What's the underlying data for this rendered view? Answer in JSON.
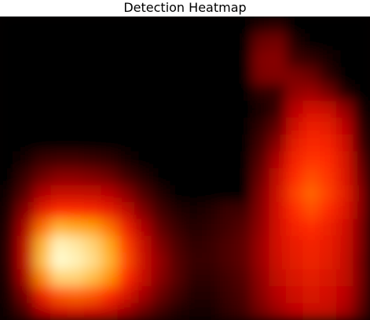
{
  "chart_data": {
    "type": "heatmap",
    "title": "Detection Heatmap",
    "xlabel": "",
    "ylabel": "",
    "colormap": "hot",
    "colormap_stops": [
      {
        "t": 0.0,
        "color": "#050000"
      },
      {
        "t": 0.35,
        "color": "#b40000"
      },
      {
        "t": 0.62,
        "color": "#ff2a00"
      },
      {
        "t": 0.82,
        "color": "#ff9f00"
      },
      {
        "t": 1.0,
        "color": "#fffcd0"
      }
    ],
    "value_range": [
      0,
      1
    ],
    "grid": false,
    "legend": "none",
    "grid_size": {
      "rows": 18,
      "cols": 22
    },
    "z": [
      [
        0.0,
        0.0,
        0.0,
        0.0,
        0.0,
        0.0,
        0.0,
        0.0,
        0.0,
        0.0,
        0.0,
        0.0,
        0.0,
        0.0,
        0.0,
        0.06,
        0.08,
        0.0,
        0.0,
        0.0,
        0.0,
        0.0
      ],
      [
        0.0,
        0.0,
        0.0,
        0.0,
        0.0,
        0.0,
        0.0,
        0.0,
        0.0,
        0.0,
        0.0,
        0.0,
        0.0,
        0.0,
        0.0,
        0.2,
        0.22,
        0.06,
        0.0,
        0.0,
        0.0,
        0.0
      ],
      [
        0.0,
        0.0,
        0.0,
        0.0,
        0.0,
        0.0,
        0.0,
        0.0,
        0.0,
        0.0,
        0.0,
        0.0,
        0.0,
        0.0,
        0.0,
        0.25,
        0.26,
        0.12,
        0.08,
        0.04,
        0.0,
        0.0
      ],
      [
        0.0,
        0.0,
        0.0,
        0.0,
        0.0,
        0.0,
        0.0,
        0.0,
        0.0,
        0.0,
        0.0,
        0.0,
        0.0,
        0.0,
        0.0,
        0.24,
        0.25,
        0.24,
        0.2,
        0.08,
        0.0,
        0.0
      ],
      [
        0.0,
        0.0,
        0.0,
        0.0,
        0.0,
        0.0,
        0.0,
        0.0,
        0.0,
        0.0,
        0.0,
        0.0,
        0.0,
        0.0,
        0.0,
        0.08,
        0.1,
        0.28,
        0.3,
        0.22,
        0.06,
        0.0
      ],
      [
        0.0,
        0.0,
        0.0,
        0.0,
        0.0,
        0.0,
        0.0,
        0.0,
        0.0,
        0.0,
        0.0,
        0.0,
        0.0,
        0.0,
        0.0,
        0.04,
        0.1,
        0.36,
        0.46,
        0.42,
        0.28,
        0.04
      ],
      [
        0.0,
        0.0,
        0.0,
        0.0,
        0.0,
        0.0,
        0.0,
        0.0,
        0.0,
        0.0,
        0.0,
        0.0,
        0.0,
        0.0,
        0.0,
        0.08,
        0.18,
        0.44,
        0.55,
        0.52,
        0.38,
        0.08
      ],
      [
        0.0,
        0.0,
        0.0,
        0.0,
        0.0,
        0.0,
        0.0,
        0.0,
        0.0,
        0.0,
        0.0,
        0.0,
        0.0,
        0.0,
        0.0,
        0.12,
        0.26,
        0.52,
        0.6,
        0.58,
        0.44,
        0.12
      ],
      [
        0.0,
        0.04,
        0.1,
        0.12,
        0.12,
        0.1,
        0.08,
        0.04,
        0.0,
        0.0,
        0.0,
        0.0,
        0.0,
        0.0,
        0.0,
        0.16,
        0.34,
        0.58,
        0.64,
        0.62,
        0.48,
        0.18
      ],
      [
        0.0,
        0.1,
        0.2,
        0.26,
        0.26,
        0.24,
        0.2,
        0.12,
        0.06,
        0.0,
        0.0,
        0.0,
        0.0,
        0.0,
        0.0,
        0.2,
        0.4,
        0.62,
        0.68,
        0.64,
        0.5,
        0.22
      ],
      [
        0.04,
        0.16,
        0.34,
        0.42,
        0.42,
        0.4,
        0.36,
        0.26,
        0.14,
        0.06,
        0.0,
        0.0,
        0.0,
        0.0,
        0.0,
        0.24,
        0.44,
        0.66,
        0.72,
        0.66,
        0.52,
        0.26
      ],
      [
        0.06,
        0.26,
        0.52,
        0.62,
        0.62,
        0.6,
        0.54,
        0.4,
        0.24,
        0.12,
        0.06,
        0.04,
        0.06,
        0.1,
        0.12,
        0.26,
        0.46,
        0.62,
        0.68,
        0.62,
        0.5,
        0.26
      ],
      [
        0.08,
        0.34,
        0.74,
        0.86,
        0.84,
        0.82,
        0.74,
        0.56,
        0.34,
        0.18,
        0.1,
        0.06,
        0.08,
        0.12,
        0.16,
        0.28,
        0.46,
        0.58,
        0.62,
        0.56,
        0.46,
        0.24
      ],
      [
        0.1,
        0.4,
        0.86,
        0.98,
        0.96,
        0.92,
        0.84,
        0.66,
        0.42,
        0.24,
        0.14,
        0.08,
        0.1,
        0.14,
        0.18,
        0.3,
        0.46,
        0.54,
        0.58,
        0.54,
        0.44,
        0.24
      ],
      [
        0.1,
        0.4,
        0.88,
        1.0,
        0.98,
        0.94,
        0.86,
        0.68,
        0.44,
        0.28,
        0.16,
        0.1,
        0.1,
        0.14,
        0.18,
        0.3,
        0.44,
        0.52,
        0.56,
        0.52,
        0.42,
        0.22
      ],
      [
        0.08,
        0.34,
        0.78,
        0.92,
        0.92,
        0.88,
        0.8,
        0.62,
        0.42,
        0.26,
        0.16,
        0.08,
        0.08,
        0.12,
        0.16,
        0.28,
        0.4,
        0.48,
        0.52,
        0.48,
        0.4,
        0.22
      ],
      [
        0.06,
        0.24,
        0.56,
        0.7,
        0.72,
        0.7,
        0.62,
        0.48,
        0.32,
        0.2,
        0.12,
        0.06,
        0.06,
        0.1,
        0.14,
        0.26,
        0.36,
        0.44,
        0.48,
        0.46,
        0.38,
        0.2
      ],
      [
        0.04,
        0.14,
        0.34,
        0.46,
        0.48,
        0.46,
        0.4,
        0.3,
        0.2,
        0.12,
        0.06,
        0.04,
        0.04,
        0.08,
        0.12,
        0.22,
        0.3,
        0.38,
        0.42,
        0.4,
        0.32,
        0.16
      ]
    ]
  }
}
